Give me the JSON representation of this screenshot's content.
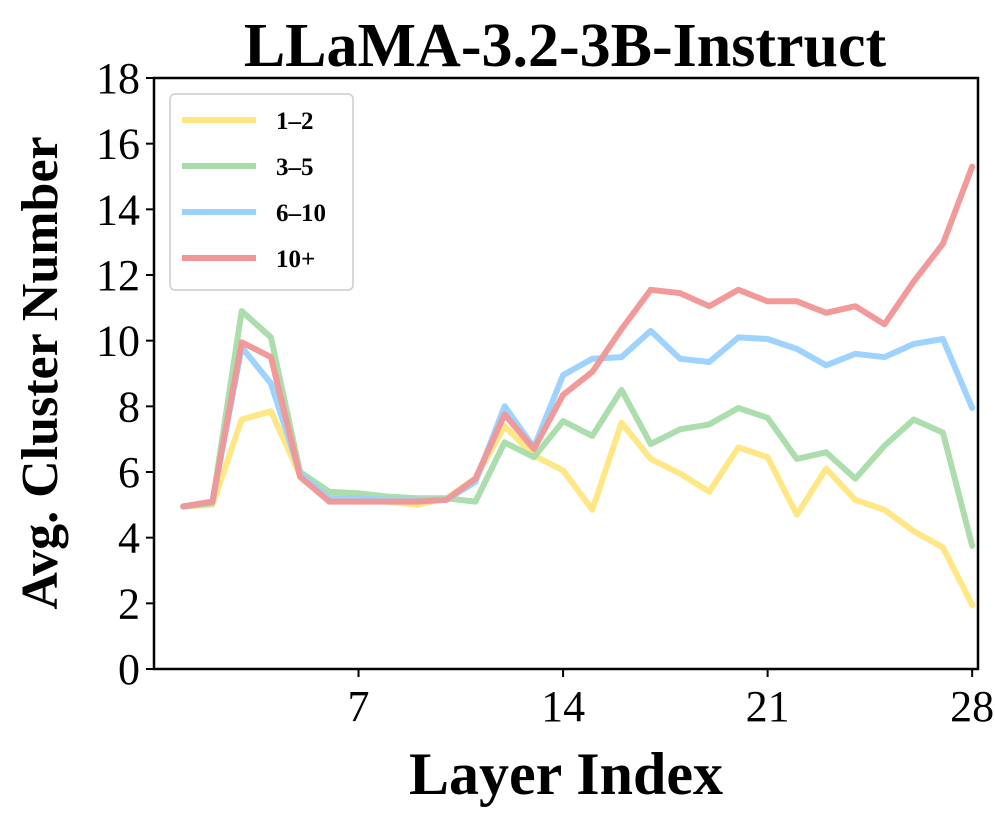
{
  "chart_data": {
    "type": "line",
    "title": "LLaMA-3.2-3B-Instruct",
    "xlabel": "Layer Index",
    "ylabel": "Avg. Cluster Number",
    "xlim": [
      0,
      28.2
    ],
    "ylim": [
      0,
      18
    ],
    "xticks": [
      7,
      14,
      21,
      28
    ],
    "yticks": [
      0,
      2,
      4,
      6,
      8,
      10,
      12,
      14,
      16,
      18
    ],
    "x": [
      1,
      2,
      3,
      4,
      5,
      6,
      7,
      8,
      9,
      10,
      11,
      12,
      13,
      14,
      15,
      16,
      17,
      18,
      19,
      20,
      21,
      22,
      23,
      24,
      25,
      26,
      27,
      28
    ],
    "legend_position": "top-left",
    "grid": false,
    "series": [
      {
        "name": "1–2",
        "color": "#ffe680",
        "values": [
          4.95,
          5.0,
          7.6,
          7.85,
          5.9,
          5.25,
          5.2,
          5.1,
          5.0,
          5.2,
          5.8,
          7.4,
          6.5,
          6.05,
          4.85,
          7.5,
          6.4,
          5.95,
          5.4,
          6.75,
          6.45,
          4.7,
          6.1,
          5.15,
          4.85,
          4.2,
          3.7,
          1.95
        ]
      },
      {
        "name": "3–5",
        "color": "#a8dba8",
        "values": [
          4.95,
          5.05,
          10.9,
          10.1,
          6.0,
          5.4,
          5.35,
          5.25,
          5.2,
          5.2,
          5.1,
          6.9,
          6.45,
          7.55,
          7.1,
          8.5,
          6.85,
          7.3,
          7.45,
          7.95,
          7.65,
          6.4,
          6.6,
          5.8,
          6.8,
          7.6,
          7.2,
          3.75
        ]
      },
      {
        "name": "6–10",
        "color": "#99d1ff",
        "values": [
          4.95,
          5.1,
          9.8,
          8.7,
          5.95,
          5.2,
          5.2,
          5.15,
          5.15,
          5.15,
          5.7,
          8.0,
          6.75,
          8.95,
          9.45,
          9.5,
          10.3,
          9.45,
          9.35,
          10.1,
          10.05,
          9.75,
          9.25,
          9.6,
          9.5,
          9.9,
          10.05,
          7.95
        ]
      },
      {
        "name": "10+",
        "color": "#f19595",
        "values": [
          4.95,
          5.1,
          9.95,
          9.5,
          5.85,
          5.1,
          5.1,
          5.1,
          5.1,
          5.15,
          5.8,
          7.75,
          6.7,
          8.35,
          9.05,
          10.35,
          11.55,
          11.45,
          11.05,
          11.55,
          11.2,
          11.2,
          10.85,
          11.05,
          10.5,
          11.8,
          12.95,
          15.3
        ]
      }
    ]
  }
}
